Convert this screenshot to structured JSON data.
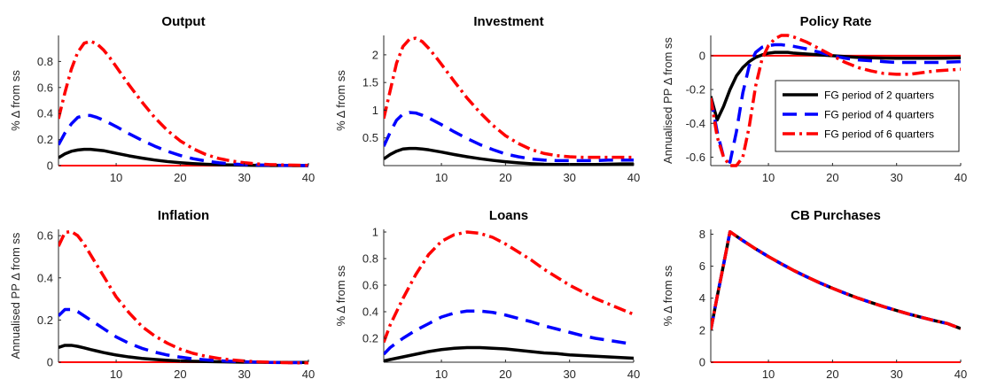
{
  "figure": {
    "legend": {
      "placement": "right, inside Policy Rate panel",
      "entries": [
        "FG period of 2 quarters",
        "FG period of 4 quarters",
        "FG period of 6 quarters"
      ]
    },
    "series_styles": [
      {
        "color": "#000000",
        "dash": "solid"
      },
      {
        "color": "#0000ff",
        "dash": "dashed"
      },
      {
        "color": "#ff0000",
        "dash": "dash-dot"
      }
    ],
    "zero_line_color": "#ff0000"
  },
  "chart_data": [
    {
      "type": "line",
      "title": "Output",
      "xlabel": "",
      "ylabel": "% Δ from ss",
      "xlim": [
        1,
        40
      ],
      "ylim": [
        0,
        1.0
      ],
      "xticks": [
        10,
        20,
        30,
        40
      ],
      "yticks": [
        0,
        0.2,
        0.4,
        0.6,
        0.8
      ],
      "ytick_labels": [
        "0",
        "0.2",
        "0.4",
        "0.6",
        "0.8"
      ],
      "x": [
        1,
        2,
        3,
        4,
        5,
        6,
        7,
        8,
        9,
        10,
        12,
        14,
        16,
        18,
        20,
        22,
        24,
        26,
        28,
        30,
        32,
        34,
        36,
        38,
        40
      ],
      "series": [
        {
          "name": "FG period of 2 quarters",
          "values": [
            0.06,
            0.09,
            0.11,
            0.12,
            0.125,
            0.125,
            0.12,
            0.115,
            0.105,
            0.095,
            0.075,
            0.058,
            0.043,
            0.031,
            0.022,
            0.015,
            0.01,
            0.007,
            0.005,
            0.003,
            0.002,
            0.001,
            0.001,
            0.0,
            0.0
          ]
        },
        {
          "name": "FG period of 4 quarters",
          "values": [
            0.16,
            0.25,
            0.32,
            0.37,
            0.385,
            0.385,
            0.37,
            0.35,
            0.325,
            0.3,
            0.245,
            0.195,
            0.15,
            0.11,
            0.078,
            0.053,
            0.035,
            0.022,
            0.013,
            0.008,
            0.005,
            0.003,
            0.002,
            0.001,
            0.0
          ]
        },
        {
          "name": "FG period of 6 quarters",
          "values": [
            0.36,
            0.56,
            0.74,
            0.87,
            0.94,
            0.955,
            0.935,
            0.89,
            0.83,
            0.76,
            0.62,
            0.49,
            0.37,
            0.27,
            0.19,
            0.13,
            0.085,
            0.055,
            0.035,
            0.022,
            0.013,
            0.008,
            0.005,
            0.003,
            0.002
          ]
        }
      ],
      "zero_line": 0
    },
    {
      "type": "line",
      "title": "Investment",
      "xlabel": "",
      "ylabel": "% Δ from ss",
      "xlim": [
        1,
        40
      ],
      "ylim": [
        0,
        2.35
      ],
      "xticks": [
        10,
        20,
        30,
        40
      ],
      "yticks": [
        0.5,
        1.0,
        1.5,
        2.0
      ],
      "ytick_labels": [
        "0.5",
        "1",
        "1.5",
        "2"
      ],
      "x": [
        1,
        2,
        3,
        4,
        5,
        6,
        7,
        8,
        9,
        10,
        12,
        14,
        16,
        18,
        20,
        22,
        24,
        26,
        28,
        30,
        32,
        34,
        36,
        38,
        40
      ],
      "series": [
        {
          "name": "FG period of 2 quarters",
          "values": [
            0.12,
            0.2,
            0.26,
            0.3,
            0.31,
            0.31,
            0.3,
            0.285,
            0.265,
            0.245,
            0.2,
            0.16,
            0.125,
            0.095,
            0.07,
            0.05,
            0.035,
            0.025,
            0.02,
            0.02,
            0.02,
            0.02,
            0.025,
            0.03,
            0.03
          ]
        },
        {
          "name": "FG period of 4 quarters",
          "values": [
            0.35,
            0.6,
            0.82,
            0.93,
            0.96,
            0.95,
            0.91,
            0.86,
            0.8,
            0.74,
            0.61,
            0.49,
            0.38,
            0.29,
            0.21,
            0.16,
            0.12,
            0.1,
            0.09,
            0.09,
            0.09,
            0.09,
            0.1,
            0.1,
            0.1
          ]
        },
        {
          "name": "FG period of 6 quarters",
          "values": [
            0.85,
            1.35,
            1.85,
            2.15,
            2.28,
            2.3,
            2.24,
            2.12,
            1.98,
            1.83,
            1.52,
            1.22,
            0.96,
            0.73,
            0.54,
            0.4,
            0.29,
            0.22,
            0.18,
            0.16,
            0.15,
            0.15,
            0.15,
            0.15,
            0.15
          ]
        }
      ],
      "zero_line": null
    },
    {
      "type": "line",
      "title": "Policy Rate",
      "xlabel": "",
      "ylabel": "Annualised PP Δ from ss",
      "xlim": [
        1,
        40
      ],
      "ylim": [
        -0.65,
        0.12
      ],
      "xticks": [
        10,
        20,
        30,
        40
      ],
      "yticks": [
        -0.6,
        -0.4,
        -0.2,
        0.0
      ],
      "ytick_labels": [
        "-0.6",
        "-0.4",
        "-0.2",
        "0"
      ],
      "x": [
        1,
        2,
        3,
        4,
        5,
        6,
        7,
        8,
        9,
        10,
        11,
        12,
        13,
        14,
        16,
        18,
        20,
        22,
        24,
        26,
        28,
        30,
        32,
        34,
        36,
        38,
        40
      ],
      "series": [
        {
          "name": "FG period of 2 quarters",
          "values": [
            -0.24,
            -0.38,
            -0.3,
            -0.2,
            -0.12,
            -0.07,
            -0.035,
            -0.01,
            0.005,
            0.015,
            0.02,
            0.02,
            0.02,
            0.015,
            0.01,
            0.005,
            0.0,
            -0.005,
            -0.01,
            -0.012,
            -0.014,
            -0.015,
            -0.015,
            -0.015,
            -0.015,
            -0.014,
            -0.013
          ]
        },
        {
          "name": "FG period of 4 quarters",
          "values": [
            -0.25,
            -0.45,
            -0.6,
            -0.63,
            -0.45,
            -0.22,
            -0.06,
            0.02,
            0.05,
            0.06,
            0.065,
            0.065,
            0.06,
            0.055,
            0.04,
            0.02,
            0.0,
            -0.015,
            -0.025,
            -0.03,
            -0.035,
            -0.04,
            -0.04,
            -0.04,
            -0.04,
            -0.038,
            -0.035
          ]
        },
        {
          "name": "FG period of 6 quarters",
          "values": [
            -0.25,
            -0.48,
            -0.6,
            -0.65,
            -0.65,
            -0.6,
            -0.42,
            -0.18,
            -0.02,
            0.06,
            0.1,
            0.12,
            0.12,
            0.11,
            0.08,
            0.04,
            0.0,
            -0.04,
            -0.07,
            -0.09,
            -0.105,
            -0.11,
            -0.11,
            -0.1,
            -0.09,
            -0.085,
            -0.08
          ]
        }
      ],
      "zero_line": 0
    },
    {
      "type": "line",
      "title": "Inflation",
      "xlabel": "",
      "ylabel": "Annualised PP Δ from ss",
      "xlim": [
        1,
        40
      ],
      "ylim": [
        0,
        0.63
      ],
      "xticks": [
        10,
        20,
        30,
        40
      ],
      "yticks": [
        0,
        0.2,
        0.4,
        0.6
      ],
      "ytick_labels": [
        "0",
        "0.2",
        "0.4",
        "0.6"
      ],
      "x": [
        1,
        2,
        3,
        4,
        5,
        6,
        7,
        8,
        9,
        10,
        12,
        14,
        16,
        18,
        20,
        22,
        24,
        26,
        28,
        30,
        32,
        34,
        36,
        38,
        40
      ],
      "series": [
        {
          "name": "FG period of 2 quarters",
          "values": [
            0.07,
            0.08,
            0.08,
            0.075,
            0.068,
            0.06,
            0.053,
            0.046,
            0.04,
            0.034,
            0.025,
            0.018,
            0.013,
            0.009,
            0.006,
            0.004,
            0.003,
            0.002,
            0.001,
            0.0,
            0.0,
            -0.001,
            -0.001,
            -0.001,
            -0.001
          ]
        },
        {
          "name": "FG period of 4 quarters",
          "values": [
            0.22,
            0.25,
            0.25,
            0.24,
            0.22,
            0.2,
            0.18,
            0.16,
            0.14,
            0.12,
            0.09,
            0.066,
            0.048,
            0.034,
            0.024,
            0.016,
            0.011,
            0.007,
            0.004,
            0.002,
            0.0,
            -0.001,
            -0.002,
            -0.002,
            -0.002
          ]
        },
        {
          "name": "FG period of 6 quarters",
          "values": [
            0.55,
            0.615,
            0.62,
            0.6,
            0.56,
            0.51,
            0.46,
            0.41,
            0.36,
            0.31,
            0.235,
            0.17,
            0.125,
            0.09,
            0.062,
            0.042,
            0.028,
            0.018,
            0.011,
            0.006,
            0.002,
            0.0,
            -0.002,
            -0.003,
            -0.003
          ]
        }
      ],
      "zero_line": 0
    },
    {
      "type": "line",
      "title": "Loans",
      "xlabel": "",
      "ylabel": "% Δ from ss",
      "xlim": [
        1,
        40
      ],
      "ylim": [
        0.02,
        1.02
      ],
      "xticks": [
        10,
        20,
        30,
        40
      ],
      "yticks": [
        0.2,
        0.4,
        0.6,
        0.8,
        1.0
      ],
      "ytick_labels": [
        "0.2",
        "0.4",
        "0.6",
        "0.8",
        "1"
      ],
      "x": [
        1,
        2,
        4,
        6,
        8,
        10,
        12,
        14,
        16,
        18,
        20,
        22,
        24,
        26,
        28,
        30,
        32,
        34,
        36,
        38,
        40
      ],
      "series": [
        {
          "name": "FG period of 2 quarters",
          "values": [
            0.03,
            0.04,
            0.06,
            0.08,
            0.1,
            0.115,
            0.125,
            0.13,
            0.13,
            0.125,
            0.12,
            0.11,
            0.1,
            0.09,
            0.085,
            0.075,
            0.07,
            0.065,
            0.06,
            0.055,
            0.05
          ]
        },
        {
          "name": "FG period of 4 quarters",
          "values": [
            0.08,
            0.13,
            0.2,
            0.26,
            0.31,
            0.36,
            0.39,
            0.405,
            0.405,
            0.395,
            0.375,
            0.35,
            0.325,
            0.295,
            0.27,
            0.245,
            0.22,
            0.2,
            0.185,
            0.17,
            0.155
          ]
        },
        {
          "name": "FG period of 6 quarters",
          "values": [
            0.17,
            0.3,
            0.5,
            0.68,
            0.83,
            0.93,
            0.98,
            1.0,
            0.99,
            0.96,
            0.91,
            0.85,
            0.79,
            0.72,
            0.66,
            0.6,
            0.55,
            0.5,
            0.46,
            0.42,
            0.38
          ]
        }
      ],
      "zero_line": null
    },
    {
      "type": "line",
      "title": "CB Purchases",
      "xlabel": "",
      "ylabel": "% Δ from ss",
      "xlim": [
        1,
        40
      ],
      "ylim": [
        0,
        8.3
      ],
      "xticks": [
        10,
        20,
        30,
        40
      ],
      "yticks": [
        0,
        2,
        4,
        6,
        8
      ],
      "ytick_labels": [
        "0",
        "2",
        "4",
        "6",
        "8"
      ],
      "x": [
        1,
        2,
        3,
        4,
        6,
        8,
        10,
        12,
        14,
        16,
        18,
        20,
        22,
        24,
        26,
        28,
        30,
        32,
        34,
        36,
        38,
        40
      ],
      "series": [
        {
          "name": "FG period of 2 quarters",
          "values": [
            2.0,
            4.1,
            6.1,
            8.15,
            7.6,
            7.08,
            6.6,
            6.15,
            5.72,
            5.33,
            4.96,
            4.62,
            4.3,
            4.0,
            3.73,
            3.47,
            3.23,
            3.0,
            2.79,
            2.59,
            2.41,
            2.1
          ]
        },
        {
          "name": "FG period of 4 quarters",
          "values": [
            2.0,
            4.1,
            6.1,
            8.15,
            7.6,
            7.08,
            6.6,
            6.15,
            5.72,
            5.33,
            4.96,
            4.62,
            4.3,
            4.0,
            3.73,
            3.47,
            3.23,
            3.0,
            2.79,
            2.59,
            2.41,
            2.1
          ]
        },
        {
          "name": "FG period of 6 quarters",
          "values": [
            2.0,
            4.1,
            6.1,
            8.15,
            7.6,
            7.08,
            6.6,
            6.15,
            5.72,
            5.33,
            4.96,
            4.62,
            4.3,
            4.0,
            3.73,
            3.47,
            3.23,
            3.0,
            2.79,
            2.59,
            2.41,
            2.1
          ]
        }
      ],
      "zero_line": 0
    }
  ]
}
